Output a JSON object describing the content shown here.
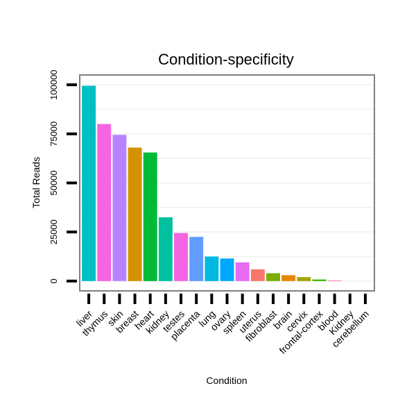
{
  "chart_data": {
    "type": "bar",
    "title": "Condition-specificity",
    "xlabel": "Condition",
    "ylabel": "Total Reads",
    "ylim": [
      -5000,
      105000
    ],
    "yticks": [
      0,
      25000,
      50000,
      75000,
      100000
    ],
    "ytick_labels": [
      "0",
      "25000",
      "50000",
      "75000",
      "100000"
    ],
    "categories": [
      "liver",
      "thymus",
      "skin",
      "breast",
      "heart",
      "kidney",
      "testes",
      "placenta",
      "lung",
      "ovary",
      "spleen",
      "uterus",
      "fibroblast",
      "brain",
      "cervix",
      "frontal-cortex",
      "blood",
      "Kidney",
      "cerebellum"
    ],
    "values": [
      99500,
      80000,
      74500,
      68000,
      65500,
      32500,
      24500,
      22500,
      12500,
      11500,
      9500,
      6000,
      4000,
      3000,
      2000,
      800,
      300,
      0,
      0
    ],
    "colors": [
      "#00BFC4",
      "#F564E3",
      "#B983FF",
      "#D39200",
      "#00BA38",
      "#00C19F",
      "#F564E3",
      "#619CFF",
      "#00B9E3",
      "#00A9FF",
      "#E76BF3",
      "#F8766D",
      "#7CAE00",
      "#E58700",
      "#A3A500",
      "#39B600",
      "#FF67A4",
      "#00BFC4",
      "#93AA00"
    ],
    "grid": true
  }
}
